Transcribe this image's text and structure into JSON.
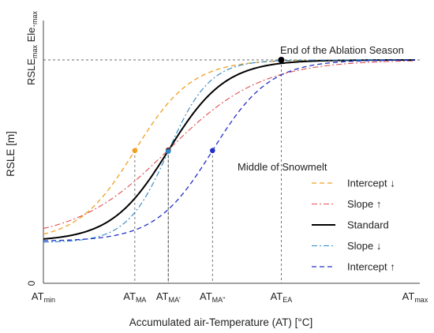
{
  "chart_data": {
    "type": "line",
    "xlabel": "Accumulated air-Temperature (AT) [°C]",
    "ylabel": "RSLE [m]",
    "y_top_label_main": "RSLE",
    "y_top_label_sub": "max",
    "y_top_label_main2": " Ele.",
    "y_top_label_sub2": "max",
    "y_zero_label": "0",
    "x_ticks": [
      {
        "main": "AT",
        "sub": "min",
        "x": 0
      },
      {
        "main": "AT",
        "sub": "MA",
        "x": 0.246
      },
      {
        "main": "AT",
        "sub": "MA'",
        "x": 0.336
      },
      {
        "main": "AT",
        "sub": "MA''",
        "x": 0.455
      },
      {
        "main": "AT",
        "sub": "EA",
        "x": 0.64
      },
      {
        "main": "AT",
        "sub": "max",
        "x": 1
      }
    ],
    "xlim": [
      0,
      1
    ],
    "ylim": [
      0,
      1
    ],
    "ymax_ref": 0.85,
    "annotations": [
      {
        "text": "End of the Ablation Season",
        "x": 0.69,
        "y": 0.885
      },
      {
        "text": "Middle of Snowmelt",
        "x": 0.55,
        "y": 0.435
      }
    ],
    "series": [
      {
        "name": "Intercept ↓",
        "color": "#f0a020",
        "dash": "6,4",
        "width": 1.3,
        "y0": 0.16,
        "k": 13,
        "x0": 0.246,
        "marker_x": 0.246
      },
      {
        "name": "Slope ↑",
        "color": "#e05050",
        "dash": "7,3,2,3",
        "width": 1.1,
        "y0": 0.165,
        "k": 8,
        "x0": 0.336,
        "marker_x": 0.336
      },
      {
        "name": "Standard",
        "color": "#000000",
        "dash": "",
        "width": 2.0,
        "y0": 0.16,
        "k": 13,
        "x0": 0.336,
        "marker_x": 0.336
      },
      {
        "name": "Slope ↓",
        "color": "#2e86c8",
        "dash": "7,3,2,3",
        "width": 1.1,
        "y0": 0.155,
        "k": 18,
        "x0": 0.336,
        "marker_x": 0.336
      },
      {
        "name": "Intercept ↑",
        "color": "#2030c8",
        "dash": "6,4",
        "width": 1.3,
        "y0": 0.16,
        "k": 13,
        "x0": 0.455,
        "marker_x": 0.455
      }
    ],
    "end_point": {
      "x": 0.64,
      "y": 0.85
    },
    "grid": false,
    "legend_position": "right"
  }
}
